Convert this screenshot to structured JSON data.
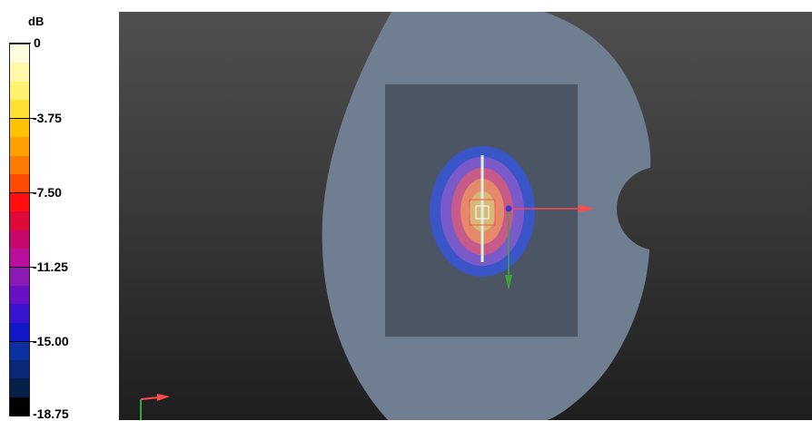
{
  "legend": {
    "unit": "dB",
    "ticks": [
      "0",
      "-3.75",
      "-7.50",
      "-11.25",
      "-15.00",
      "-18.75"
    ],
    "colors": [
      "#fffde0",
      "#fff8a8",
      "#fff270",
      "#ffdf30",
      "#ffc200",
      "#ffa000",
      "#ff7a00",
      "#ff4a00",
      "#ff0e0e",
      "#e00a3a",
      "#c8086c",
      "#b8109c",
      "#8c1ab4",
      "#6a10c4",
      "#3814d0",
      "#1018c8",
      "#0c30a0",
      "#0a2878",
      "#05214a",
      "#000000"
    ]
  },
  "scene": {
    "background_top": "#4f4f4f",
    "background_bottom": "#1e1e1e",
    "body_color": "#6f7f91",
    "panel_color": "#4c5563",
    "field_levels": [
      {
        "level": "-15.00",
        "color": "#3a55c8"
      },
      {
        "level": "-11.25",
        "color": "#7a5ac8"
      },
      {
        "level": "-7.50",
        "color": "#c85a8a"
      },
      {
        "level": "-5.00",
        "color": "#e48a6a"
      },
      {
        "level": "-3.75",
        "color": "#d8b878"
      }
    ],
    "source_line_color": "#d8f2d8",
    "axis_x_color": "#ff4a4a",
    "axis_y_color": "#3aa63a",
    "axis_z_color": "#3a3acc"
  }
}
